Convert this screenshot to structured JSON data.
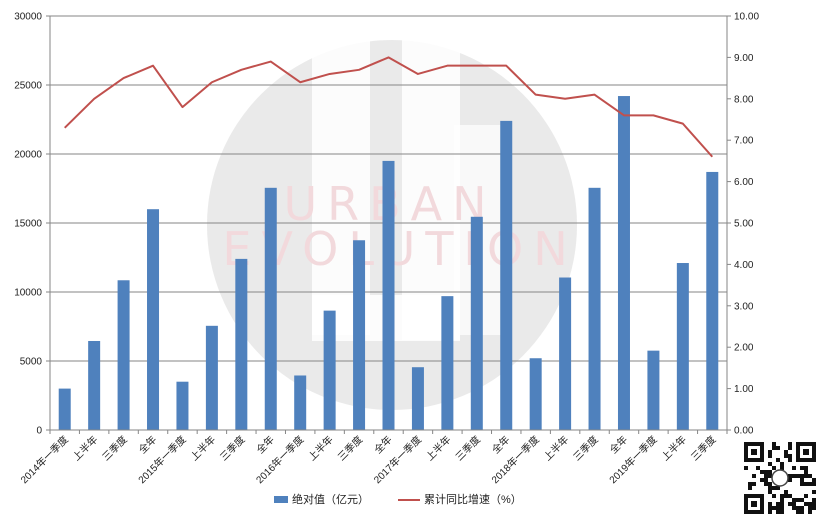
{
  "chart_data": {
    "type": "bar+line",
    "title": "",
    "categories": [
      "2014年一季度",
      "上半年",
      "三季度",
      "全年",
      "2015年一季度",
      "上半年",
      "三季度",
      "全年",
      "2016年一季度",
      "上半年",
      "三季度",
      "全年",
      "2017年一季度",
      "上半年",
      "三季度",
      "全年",
      "2018年一季度",
      "上半年",
      "三季度",
      "全年",
      "2019年一季度",
      "上半年",
      "三季度"
    ],
    "series": [
      {
        "name": "绝对值（亿元）",
        "type": "bar",
        "axis": "left",
        "values": [
          3000,
          6450,
          10850,
          16000,
          3500,
          7550,
          12400,
          17550,
          3950,
          8650,
          13750,
          19500,
          4550,
          9700,
          15450,
          22400,
          5200,
          11050,
          17550,
          24200,
          5750,
          12100,
          18700
        ]
      },
      {
        "name": "累计同比增速（%）",
        "type": "line",
        "axis": "right",
        "values": [
          7.3,
          8.0,
          8.5,
          8.8,
          7.8,
          8.4,
          8.7,
          8.9,
          8.4,
          8.6,
          8.7,
          9.0,
          8.6,
          8.8,
          8.8,
          8.8,
          8.1,
          8.0,
          8.1,
          7.6,
          7.6,
          7.4,
          6.6
        ]
      }
    ],
    "y_left": {
      "min": 0,
      "max": 30000,
      "ticks": [
        "0",
        "5000",
        "10000",
        "15000",
        "20000",
        "25000",
        "30000"
      ]
    },
    "y_right": {
      "min": 0,
      "max": 10,
      "ticks": [
        "0.00",
        "1.00",
        "2.00",
        "3.00",
        "4.00",
        "5.00",
        "6.00",
        "7.00",
        "8.00",
        "9.00",
        "10.00"
      ]
    },
    "grid": true,
    "legend_position": "bottom",
    "colors": {
      "bar": "#4f81bd",
      "line": "#c0504d",
      "grid": "#868686"
    }
  },
  "watermark": {
    "line1": "URBAN",
    "line2": "EVOLUTION"
  }
}
